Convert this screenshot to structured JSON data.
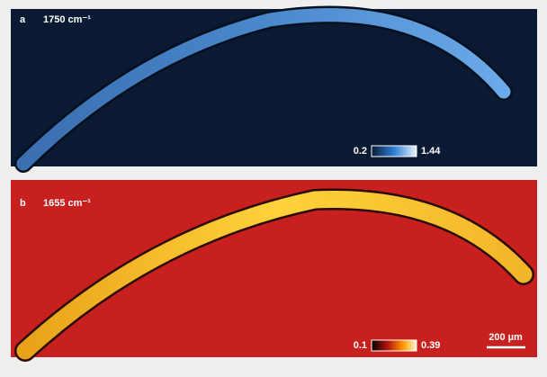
{
  "panels": [
    {
      "label": "a",
      "wavenumber": "1750 cm⁻¹",
      "colorbar_min": "0.2",
      "colorbar_max": "1.44"
    },
    {
      "label": "b",
      "wavenumber": "1655 cm⁻¹",
      "colorbar_min": "0.1",
      "colorbar_max": "0.39"
    }
  ],
  "scale_bar": "200 µm"
}
